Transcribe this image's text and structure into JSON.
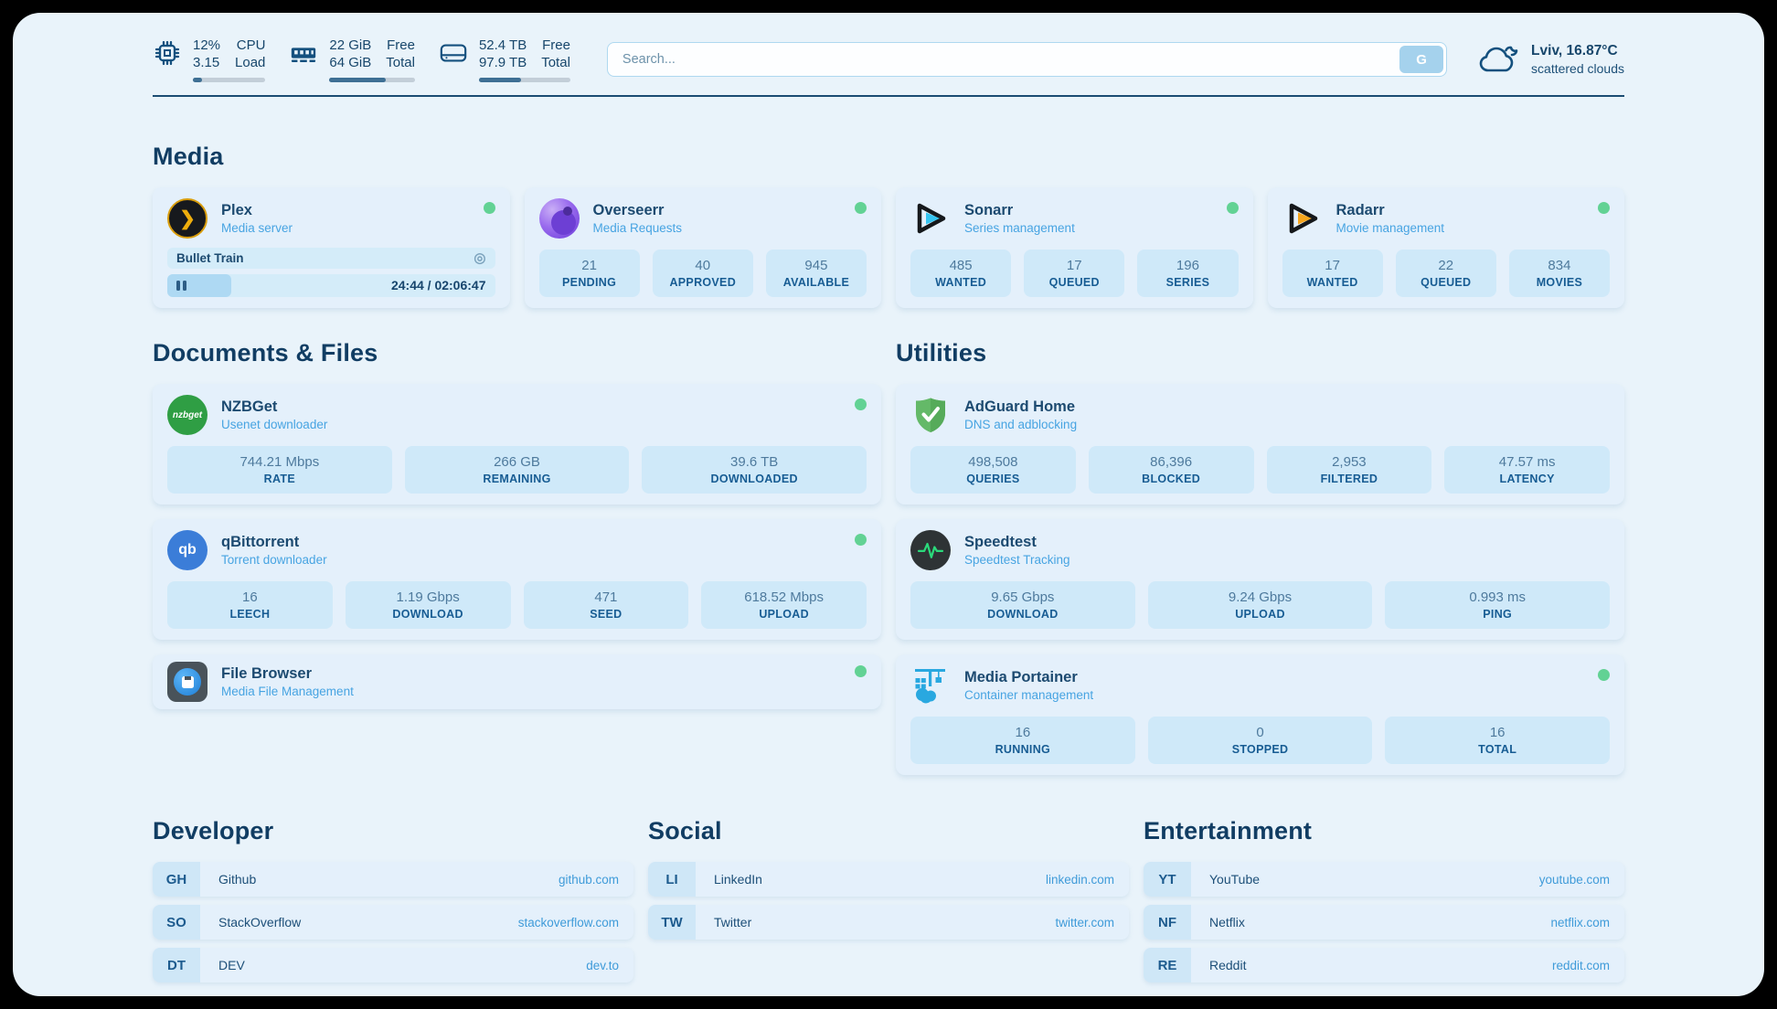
{
  "topbar": {
    "cpu": {
      "value_top": "12%",
      "value_bottom": "3.15",
      "label_top": "CPU",
      "label_bottom": "Load",
      "progress_percent": 12
    },
    "ram": {
      "value_top": "22 GiB",
      "value_bottom": "64 GiB",
      "label_top": "Free",
      "label_bottom": "Total",
      "progress_percent": 66
    },
    "disk": {
      "value_top": "52.4 TB",
      "value_bottom": "97.9 TB",
      "label_top": "Free",
      "label_bottom": "Total",
      "progress_percent": 46
    },
    "search": {
      "placeholder": "Search...",
      "engine_button": "G"
    },
    "weather": {
      "location_temp": "Lviv, 16.87°C",
      "condition": "scattered clouds"
    }
  },
  "colors": {
    "page_bg": "#e9f3fa",
    "card_bg": "#e4f0fb",
    "stat_bg": "#cfe9f9",
    "accent_navy": "#17466b",
    "link_blue": "#47a4e2",
    "status_green": "#62d294"
  },
  "sections": {
    "media": {
      "title": "Media",
      "cards": [
        {
          "name": "Plex",
          "subtitle": "Media server",
          "online": true,
          "player": {
            "now_playing": "Bullet Train",
            "time_display": "24:44 / 02:06:47",
            "progress_percent": 19.5
          }
        },
        {
          "name": "Overseerr",
          "subtitle": "Media Requests",
          "online": true,
          "stats": [
            {
              "value": "21",
              "label": "PENDING"
            },
            {
              "value": "40",
              "label": "APPROVED"
            },
            {
              "value": "945",
              "label": "AVAILABLE"
            }
          ]
        },
        {
          "name": "Sonarr",
          "subtitle": "Series management",
          "online": true,
          "stats": [
            {
              "value": "485",
              "label": "WANTED"
            },
            {
              "value": "17",
              "label": "QUEUED"
            },
            {
              "value": "196",
              "label": "SERIES"
            }
          ]
        },
        {
          "name": "Radarr",
          "subtitle": "Movie management",
          "online": true,
          "stats": [
            {
              "value": "17",
              "label": "WANTED"
            },
            {
              "value": "22",
              "label": "QUEUED"
            },
            {
              "value": "834",
              "label": "MOVIES"
            }
          ]
        }
      ]
    },
    "documents": {
      "title": "Documents & Files",
      "cards": [
        {
          "name": "NZBGet",
          "subtitle": "Usenet downloader",
          "online": true,
          "stats": [
            {
              "value": "744.21 Mbps",
              "label": "RATE"
            },
            {
              "value": "266 GB",
              "label": "REMAINING"
            },
            {
              "value": "39.6 TB",
              "label": "DOWNLOADED"
            }
          ]
        },
        {
          "name": "qBittorrent",
          "subtitle": "Torrent downloader",
          "online": true,
          "stats": [
            {
              "value": "16",
              "label": "LEECH"
            },
            {
              "value": "1.19 Gbps",
              "label": "DOWNLOAD"
            },
            {
              "value": "471",
              "label": "SEED"
            },
            {
              "value": "618.52 Mbps",
              "label": "UPLOAD"
            }
          ]
        },
        {
          "name": "File Browser",
          "subtitle": "Media File Management",
          "online": true
        }
      ]
    },
    "utilities": {
      "title": "Utilities",
      "cards": [
        {
          "name": "AdGuard Home",
          "subtitle": "DNS and adblocking",
          "stats": [
            {
              "value": "498,508",
              "label": "QUERIES"
            },
            {
              "value": "86,396",
              "label": "BLOCKED"
            },
            {
              "value": "2,953",
              "label": "FILTERED"
            },
            {
              "value": "47.57 ms",
              "label": "LATENCY"
            }
          ]
        },
        {
          "name": "Speedtest",
          "subtitle": "Speedtest Tracking",
          "stats": [
            {
              "value": "9.65 Gbps",
              "label": "DOWNLOAD"
            },
            {
              "value": "9.24 Gbps",
              "label": "UPLOAD"
            },
            {
              "value": "0.993 ms",
              "label": "PING"
            }
          ]
        },
        {
          "name": "Media Portainer",
          "subtitle": "Container management",
          "online": true,
          "stats": [
            {
              "value": "16",
              "label": "RUNNING"
            },
            {
              "value": "0",
              "label": "STOPPED"
            },
            {
              "value": "16",
              "label": "TOTAL"
            }
          ]
        }
      ]
    },
    "links": {
      "groups": [
        {
          "title": "Developer",
          "items": [
            {
              "abbr": "GH",
              "name": "Github",
              "url": "github.com"
            },
            {
              "abbr": "SO",
              "name": "StackOverflow",
              "url": "stackoverflow.com"
            },
            {
              "abbr": "DT",
              "name": "DEV",
              "url": "dev.to"
            }
          ]
        },
        {
          "title": "Social",
          "items": [
            {
              "abbr": "LI",
              "name": "LinkedIn",
              "url": "linkedin.com"
            },
            {
              "abbr": "TW",
              "name": "Twitter",
              "url": "twitter.com"
            }
          ]
        },
        {
          "title": "Entertainment",
          "items": [
            {
              "abbr": "YT",
              "name": "YouTube",
              "url": "youtube.com"
            },
            {
              "abbr": "NF",
              "name": "Netflix",
              "url": "netflix.com"
            },
            {
              "abbr": "RE",
              "name": "Reddit",
              "url": "reddit.com"
            }
          ]
        }
      ]
    },
    "nzbget_logo_text": "nzbget",
    "qbittorrent_logo_text": "qb"
  }
}
